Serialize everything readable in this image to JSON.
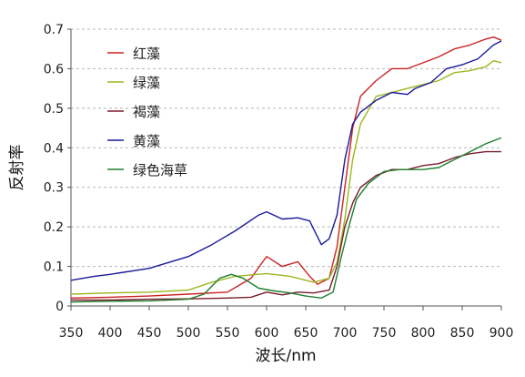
{
  "chart_data": {
    "type": "line",
    "title": "",
    "xlabel": "波长/nm",
    "ylabel": "反射率",
    "xlim": [
      350,
      900
    ],
    "ylim": [
      0,
      0.7
    ],
    "grid": true,
    "legend_position": "top-left",
    "x_ticks": [
      "350",
      "400",
      "450",
      "500",
      "550",
      "600",
      "650",
      "700",
      "750",
      "800",
      "850",
      "900"
    ],
    "y_ticks": [
      "0",
      "0.1",
      "0.2",
      "0.3",
      "0.4",
      "0.5",
      "0.6",
      "0.7"
    ],
    "series": [
      {
        "name": "红藻",
        "color": "#cc2222",
        "points": [
          [
            350,
            0.02
          ],
          [
            400,
            0.022
          ],
          [
            450,
            0.025
          ],
          [
            500,
            0.03
          ],
          [
            550,
            0.035
          ],
          [
            580,
            0.07
          ],
          [
            600,
            0.125
          ],
          [
            620,
            0.1
          ],
          [
            640,
            0.112
          ],
          [
            655,
            0.075
          ],
          [
            665,
            0.055
          ],
          [
            680,
            0.07
          ],
          [
            690,
            0.15
          ],
          [
            700,
            0.3
          ],
          [
            710,
            0.45
          ],
          [
            720,
            0.53
          ],
          [
            740,
            0.57
          ],
          [
            760,
            0.6
          ],
          [
            780,
            0.6
          ],
          [
            800,
            0.615
          ],
          [
            820,
            0.63
          ],
          [
            840,
            0.65
          ],
          [
            860,
            0.66
          ],
          [
            880,
            0.675
          ],
          [
            890,
            0.68
          ],
          [
            900,
            0.672
          ]
        ]
      },
      {
        "name": "绿藻",
        "color": "#9ab81e",
        "points": [
          [
            350,
            0.03
          ],
          [
            400,
            0.033
          ],
          [
            450,
            0.035
          ],
          [
            500,
            0.04
          ],
          [
            530,
            0.06
          ],
          [
            560,
            0.075
          ],
          [
            600,
            0.082
          ],
          [
            630,
            0.075
          ],
          [
            660,
            0.06
          ],
          [
            680,
            0.07
          ],
          [
            690,
            0.11
          ],
          [
            700,
            0.22
          ],
          [
            710,
            0.37
          ],
          [
            720,
            0.46
          ],
          [
            740,
            0.53
          ],
          [
            760,
            0.54
          ],
          [
            780,
            0.55
          ],
          [
            800,
            0.56
          ],
          [
            820,
            0.57
          ],
          [
            840,
            0.59
          ],
          [
            860,
            0.595
          ],
          [
            880,
            0.605
          ],
          [
            890,
            0.62
          ],
          [
            900,
            0.615
          ]
        ]
      },
      {
        "name": "褐藻",
        "color": "#7a1d2e",
        "points": [
          [
            350,
            0.015
          ],
          [
            400,
            0.015
          ],
          [
            450,
            0.017
          ],
          [
            500,
            0.018
          ],
          [
            550,
            0.02
          ],
          [
            580,
            0.022
          ],
          [
            600,
            0.035
          ],
          [
            620,
            0.028
          ],
          [
            640,
            0.035
          ],
          [
            660,
            0.033
          ],
          [
            680,
            0.04
          ],
          [
            690,
            0.1
          ],
          [
            700,
            0.2
          ],
          [
            710,
            0.26
          ],
          [
            720,
            0.3
          ],
          [
            740,
            0.33
          ],
          [
            760,
            0.345
          ],
          [
            780,
            0.345
          ],
          [
            800,
            0.355
          ],
          [
            820,
            0.36
          ],
          [
            840,
            0.375
          ],
          [
            860,
            0.385
          ],
          [
            880,
            0.39
          ],
          [
            900,
            0.39
          ]
        ]
      },
      {
        "name": "黄藻",
        "color": "#1a1a9a",
        "points": [
          [
            350,
            0.065
          ],
          [
            380,
            0.075
          ],
          [
            400,
            0.08
          ],
          [
            450,
            0.095
          ],
          [
            500,
            0.125
          ],
          [
            530,
            0.155
          ],
          [
            560,
            0.19
          ],
          [
            590,
            0.23
          ],
          [
            600,
            0.238
          ],
          [
            620,
            0.22
          ],
          [
            640,
            0.223
          ],
          [
            655,
            0.215
          ],
          [
            670,
            0.155
          ],
          [
            680,
            0.17
          ],
          [
            690,
            0.23
          ],
          [
            700,
            0.37
          ],
          [
            710,
            0.46
          ],
          [
            720,
            0.49
          ],
          [
            740,
            0.52
          ],
          [
            760,
            0.54
          ],
          [
            780,
            0.535
          ],
          [
            790,
            0.55
          ],
          [
            810,
            0.565
          ],
          [
            830,
            0.6
          ],
          [
            850,
            0.61
          ],
          [
            870,
            0.625
          ],
          [
            890,
            0.66
          ],
          [
            900,
            0.67
          ]
        ]
      },
      {
        "name": "绿色海草",
        "color": "#1f7f2f",
        "points": [
          [
            350,
            0.01
          ],
          [
            400,
            0.012
          ],
          [
            450,
            0.013
          ],
          [
            500,
            0.017
          ],
          [
            520,
            0.03
          ],
          [
            540,
            0.07
          ],
          [
            555,
            0.08
          ],
          [
            570,
            0.07
          ],
          [
            590,
            0.045
          ],
          [
            610,
            0.038
          ],
          [
            630,
            0.033
          ],
          [
            650,
            0.025
          ],
          [
            670,
            0.02
          ],
          [
            685,
            0.035
          ],
          [
            695,
            0.12
          ],
          [
            705,
            0.2
          ],
          [
            715,
            0.27
          ],
          [
            730,
            0.31
          ],
          [
            750,
            0.34
          ],
          [
            770,
            0.345
          ],
          [
            800,
            0.345
          ],
          [
            820,
            0.35
          ],
          [
            840,
            0.37
          ],
          [
            860,
            0.39
          ],
          [
            880,
            0.41
          ],
          [
            900,
            0.425
          ]
        ]
      }
    ]
  }
}
